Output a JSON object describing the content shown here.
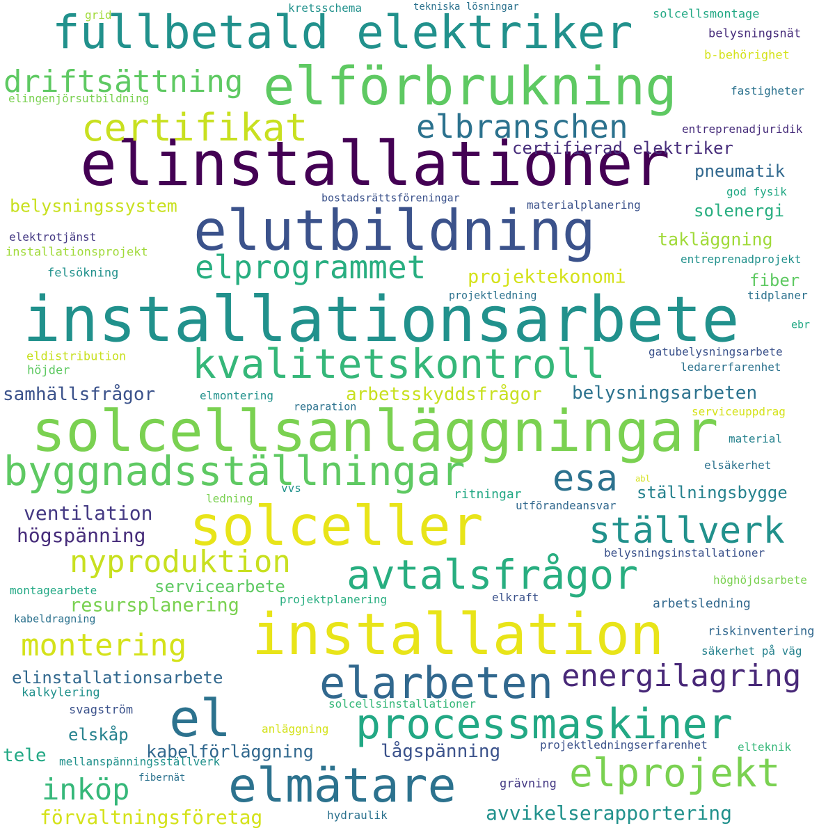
{
  "words": [
    {
      "text": "fullbetald elektriker",
      "color": "#21918c"
    },
    {
      "text": "elförbrukning",
      "color": "#5ec962"
    },
    {
      "text": "elinstallationer",
      "color": "#440154"
    },
    {
      "text": "driftsättning",
      "color": "#5ec962"
    },
    {
      "text": "certifikat",
      "color": "#c8e020"
    },
    {
      "text": "elbranschen",
      "color": "#2c728e"
    },
    {
      "text": "elutbildning",
      "color": "#3b528b"
    },
    {
      "text": "elprogrammet",
      "color": "#28ae80"
    },
    {
      "text": "installationsarbete",
      "color": "#21918c"
    },
    {
      "text": "kvalitetskontroll",
      "color": "#35b779"
    },
    {
      "text": "solcellsanläggningar",
      "color": "#7ad151"
    },
    {
      "text": "byggnadsställningar",
      "color": "#5ec962"
    },
    {
      "text": "esa",
      "color": "#2c728e"
    },
    {
      "text": "solceller",
      "color": "#e8e419"
    },
    {
      "text": "ställverk",
      "color": "#21918c"
    },
    {
      "text": "nyproduktion",
      "color": "#c8e020"
    },
    {
      "text": "avtalsfrågor",
      "color": "#28ae80"
    },
    {
      "text": "installation",
      "color": "#e8e419"
    },
    {
      "text": "montering",
      "color": "#d4e21a"
    },
    {
      "text": "elarbeten",
      "color": "#31688e"
    },
    {
      "text": "energilagring",
      "color": "#482878"
    },
    {
      "text": "el",
      "color": "#2c728e"
    },
    {
      "text": "processmaskiner",
      "color": "#22a884"
    },
    {
      "text": "elmätare",
      "color": "#2c728e"
    },
    {
      "text": "elprojekt",
      "color": "#7ad151"
    },
    {
      "text": "inköp",
      "color": "#35b779"
    },
    {
      "text": "certifierad elektriker",
      "color": "#472d7b"
    },
    {
      "text": "pneumatik",
      "color": "#31688e"
    },
    {
      "text": "belysningssystem",
      "color": "#c8e020"
    },
    {
      "text": "solenergi",
      "color": "#28ae80"
    },
    {
      "text": "takläggning",
      "color": "#a0da39"
    },
    {
      "text": "projektekonomi",
      "color": "#d4e21a"
    },
    {
      "text": "fiber",
      "color": "#5ec962"
    },
    {
      "text": "arbetsskyddsfrågor",
      "color": "#c8e020"
    },
    {
      "text": "samhällsfrågor",
      "color": "#3b528b"
    },
    {
      "text": "belysningsarbeten",
      "color": "#2c728e"
    },
    {
      "text": "ventilation",
      "color": "#443983"
    },
    {
      "text": "högspänning",
      "color": "#472d7b"
    },
    {
      "text": "ställningsbygge",
      "color": "#26828e"
    },
    {
      "text": "servicearbete",
      "color": "#5ec962"
    },
    {
      "text": "resursplanering",
      "color": "#7ad151"
    },
    {
      "text": "elinstallationsarbete",
      "color": "#31688e"
    },
    {
      "text": "kabelförläggning",
      "color": "#31688e"
    },
    {
      "text": "lågspänning",
      "color": "#3b528b"
    },
    {
      "text": "elskåp",
      "color": "#26828e"
    },
    {
      "text": "tele",
      "color": "#22a884"
    },
    {
      "text": "avvikelserapportering",
      "color": "#21918c"
    },
    {
      "text": "förvaltningsföretag",
      "color": "#d4e21a"
    },
    {
      "text": "grid",
      "color": "#a0da39"
    },
    {
      "text": "kretsschema",
      "color": "#21918c"
    },
    {
      "text": "tekniska lösningar",
      "color": "#2c728e"
    },
    {
      "text": "solcellsmontage",
      "color": "#22a884"
    },
    {
      "text": "belysningsnät",
      "color": "#472d7b"
    },
    {
      "text": "b-behörighet",
      "color": "#d4e21a"
    },
    {
      "text": "fastigheter",
      "color": "#2c728e"
    },
    {
      "text": "elingenjörsutbildning",
      "color": "#7ad151"
    },
    {
      "text": "entreprenadjuridik",
      "color": "#472d7b"
    },
    {
      "text": "god fysik",
      "color": "#22a884"
    },
    {
      "text": "bostadsrättsföreningar",
      "color": "#3b528b"
    },
    {
      "text": "materialplanering",
      "color": "#3b528b"
    },
    {
      "text": "elektrotjänst",
      "color": "#443983"
    },
    {
      "text": "installationsprojekt",
      "color": "#a0da39"
    },
    {
      "text": "entreprenadprojekt",
      "color": "#21918c"
    },
    {
      "text": "felsökning",
      "color": "#21918c"
    },
    {
      "text": "projektledning",
      "color": "#2c728e"
    },
    {
      "text": "tidplaner",
      "color": "#2c728e"
    },
    {
      "text": "ebr",
      "color": "#22a884"
    },
    {
      "text": "eldistribution",
      "color": "#c8e020"
    },
    {
      "text": "höjder",
      "color": "#5ec962"
    },
    {
      "text": "gatubelysningsarbete",
      "color": "#3b528b"
    },
    {
      "text": "ledarerfarenhet",
      "color": "#2c728e"
    },
    {
      "text": "elmontering",
      "color": "#21918c"
    },
    {
      "text": "reparation",
      "color": "#2c728e"
    },
    {
      "text": "serviceuppdrag",
      "color": "#d4e21a"
    },
    {
      "text": "material",
      "color": "#26828e"
    },
    {
      "text": "elsäkerhet",
      "color": "#2c728e"
    },
    {
      "text": "abl",
      "color": "#d4e21a"
    },
    {
      "text": "ledning",
      "color": "#7ad151"
    },
    {
      "text": "vvs",
      "color": "#21918c"
    },
    {
      "text": "ritningar",
      "color": "#22a884"
    },
    {
      "text": "utförandeansvar",
      "color": "#31688e"
    },
    {
      "text": "belysningsinstallationer",
      "color": "#3b528b"
    },
    {
      "text": "höghöjdsarbete",
      "color": "#7ad151"
    },
    {
      "text": "montagearbete",
      "color": "#22a884"
    },
    {
      "text": "projektplanering",
      "color": "#28ae80"
    },
    {
      "text": "elkraft",
      "color": "#3b528b"
    },
    {
      "text": "arbetsledning",
      "color": "#31688e"
    },
    {
      "text": "kabeldragning",
      "color": "#2c728e"
    },
    {
      "text": "riskinventering",
      "color": "#31688e"
    },
    {
      "text": "säkerhet på väg",
      "color": "#26828e"
    },
    {
      "text": "kalkylering",
      "color": "#21918c"
    },
    {
      "text": "solcellsinstallationer",
      "color": "#35b779"
    },
    {
      "text": "svagström",
      "color": "#3b528b"
    },
    {
      "text": "anläggning",
      "color": "#d4e21a"
    },
    {
      "text": "projektledningserfarenhet",
      "color": "#3b528b"
    },
    {
      "text": "elteknik",
      "color": "#35b779"
    },
    {
      "text": "mellanspänningsställverk",
      "color": "#21918c"
    },
    {
      "text": "fibernät",
      "color": "#2c728e"
    },
    {
      "text": "grävning",
      "color": "#443983"
    },
    {
      "text": "hydraulik",
      "color": "#2c728e"
    }
  ]
}
